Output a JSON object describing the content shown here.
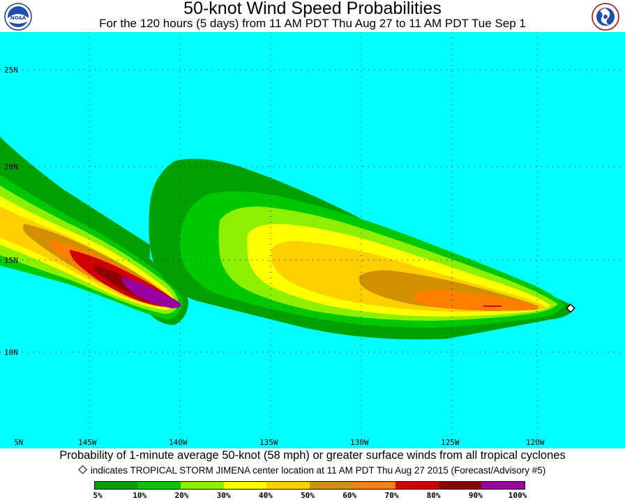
{
  "header": {
    "title": "50-knot Wind Speed Probabilities",
    "subtitle": "For the 120 hours (5 days) from 11 AM PDT Thu Aug 27 to 11 AM PDT Tue Sep 1",
    "left_logo": "NOAA",
    "right_logo": "National Weather Service"
  },
  "map": {
    "latitudes": [
      "25N",
      "20N",
      "15N",
      "10N",
      "5N"
    ],
    "longitudes": [
      "145W",
      "140W",
      "135W",
      "130W",
      "125W",
      "120W"
    ],
    "ocean_color": "#00ffff",
    "storm_marker": "storm-center-diamond"
  },
  "footer": {
    "caption": "Probability of 1-minute average 50-knot (58 mph) or greater surface winds from all tropical cyclones",
    "marker_note": "indicates TROPICAL STORM JIMENA center location at 11 AM PDT Thu Aug 27 2015 (Forecast/Advisory #5)"
  },
  "legend": {
    "colors": [
      "#00a000",
      "#00c800",
      "#8cf000",
      "#ffff00",
      "#ffd000",
      "#d09000",
      "#ff8000",
      "#d00000",
      "#900000",
      "#9a00a0"
    ],
    "labels": [
      "5%",
      "10%",
      "20%",
      "30%",
      "40%",
      "50%",
      "60%",
      "70%",
      "80%",
      "90%",
      "100%"
    ]
  }
}
